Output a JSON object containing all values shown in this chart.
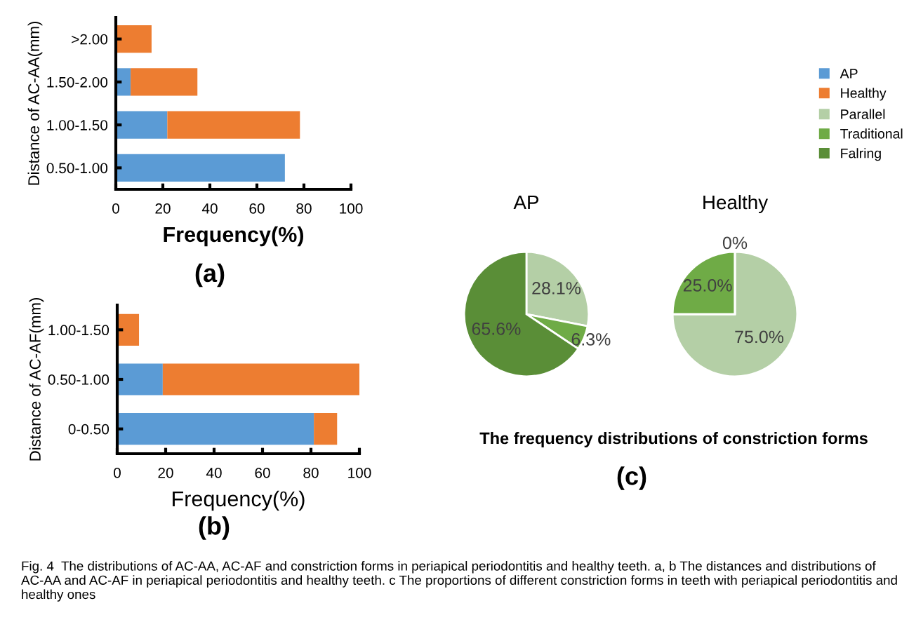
{
  "chart_data": [
    {
      "type": "bar",
      "orientation": "horizontal",
      "stacked": true,
      "categories": [
        ">2.00",
        "1.50-2.00",
        "1.00-1.50",
        "0.50-1.00"
      ],
      "series": [
        {
          "name": "AP",
          "color": "#5b9bd5",
          "values": [
            0,
            6.3,
            21.9,
            71.9
          ]
        },
        {
          "name": "Healthy",
          "color": "#ed7d31",
          "values": [
            15.2,
            28.4,
            56.4,
            0
          ]
        }
      ],
      "xlim": [
        0,
        100
      ],
      "xticks": [
        0,
        20,
        40,
        60,
        80,
        100
      ],
      "xlabel": "Frequency(%)",
      "ylabel": "Distance of AC-AA(mm)",
      "annotations": [
        "(a)"
      ],
      "legend": "right"
    },
    {
      "type": "bar",
      "orientation": "horizontal",
      "stacked": true,
      "categories": [
        "1.00-1.50",
        "0.50-1.00",
        "0-0.50"
      ],
      "series": [
        {
          "color": "#5b9bd5",
          "values": [
            0,
            18.8,
            81.2
          ]
        },
        {
          "color": "#ed7d31",
          "values": [
            9,
            81.2,
            9.6
          ]
        }
      ],
      "xlim": [
        0,
        100
      ],
      "xticks": [
        0,
        20,
        40,
        60,
        80,
        100
      ],
      "xlabel": "Frequency(%)",
      "ylabel": "Distance of AC-AF(mm)",
      "annotations": [
        "(b)"
      ]
    },
    {
      "type": "pie",
      "title": "AP",
      "categories": [
        "Parallel",
        "Traditional",
        "Falring"
      ],
      "values": [
        28.1,
        6.3,
        65.6
      ],
      "colors": [
        "#b4cfa6",
        "#6fab46",
        "#5a8e37"
      ],
      "value_labels": [
        "28.1%",
        "6.3%",
        "65.6%"
      ],
      "legend": "right"
    },
    {
      "type": "pie",
      "title": "Healthy",
      "categories": [
        null,
        null,
        null
      ],
      "values": [
        75,
        25,
        0
      ],
      "colors": [
        "#b4cfa6",
        "#6fab46",
        "#5a8e37"
      ],
      "value_labels": [
        "75.0%",
        "25.0%",
        "0%"
      ],
      "annotations": [
        "The frequency distributions of constriction forms",
        "(c)",
        "Fig. 4  The distributions of AC-AA, AC-AF and constriction forms in periapical periodontitis and healthy teeth. a, b The distances and distributions of AC-AA and AC-AF in periapical periodontitis and healthy teeth. c The proportions of different constriction forms in teeth with periapical periodontitis and healthy ones"
      ]
    }
  ]
}
